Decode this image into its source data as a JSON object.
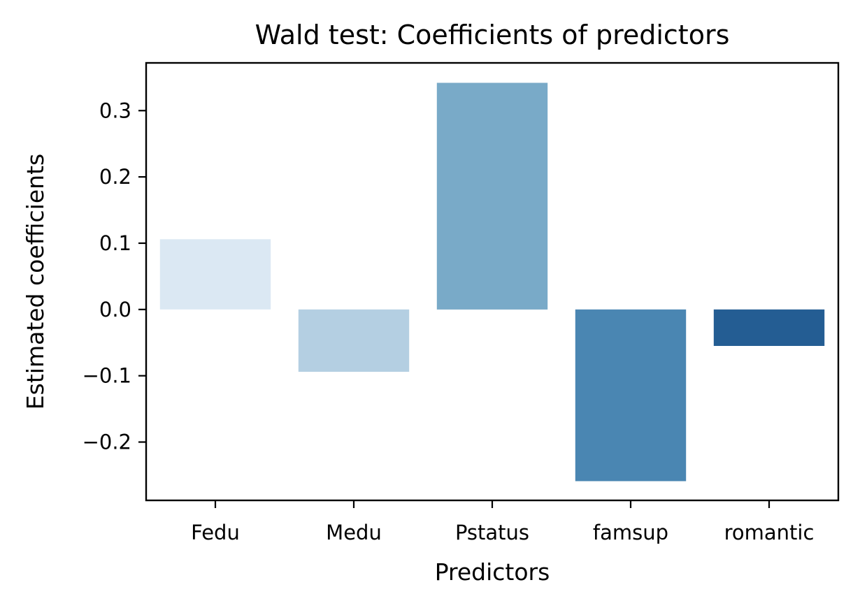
{
  "chart_data": {
    "type": "bar",
    "title": "Wald test: Coefficients of predictors",
    "xlabel": "Predictors",
    "ylabel": "Estimated coefficients",
    "categories": [
      "Fedu",
      "Medu",
      "Pstatus",
      "famsup",
      "romantic"
    ],
    "values": [
      0.106,
      -0.094,
      0.342,
      -0.259,
      -0.055
    ],
    "colors": [
      "#dbe8f3",
      "#b4cfe2",
      "#79aac8",
      "#4a86b2",
      "#245d93"
    ],
    "ylim": [
      -0.288,
      0.372
    ],
    "yticks": [
      -0.2,
      -0.1,
      0.0,
      0.1,
      0.2,
      0.3
    ],
    "ytick_labels": [
      "−0.2",
      "−0.1",
      "0.0",
      "0.1",
      "0.2",
      "0.3"
    ],
    "grid": false,
    "legend": "none"
  }
}
